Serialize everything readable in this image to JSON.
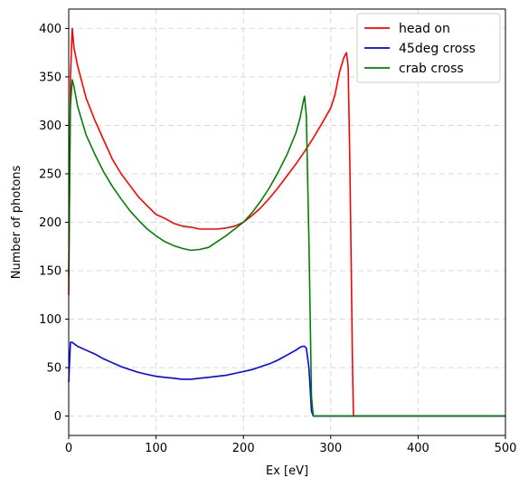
{
  "chart_data": {
    "type": "line",
    "title": "",
    "xlabel": "Ex [eV]",
    "ylabel": "Number of photons",
    "xlim": [
      0,
      500
    ],
    "ylim": [
      -20,
      420
    ],
    "xticks": [
      0,
      100,
      200,
      300,
      400,
      500
    ],
    "yticks": [
      0,
      50,
      100,
      150,
      200,
      250,
      300,
      350,
      400
    ],
    "grid": true,
    "legend_position": "top-right",
    "series": [
      {
        "name": "head on",
        "color": "#ff0000",
        "x": [
          0,
          2,
          4,
          6,
          10,
          15,
          20,
          30,
          40,
          50,
          60,
          70,
          80,
          90,
          100,
          110,
          120,
          130,
          140,
          150,
          160,
          170,
          180,
          190,
          200,
          210,
          220,
          230,
          240,
          250,
          260,
          270,
          280,
          290,
          300,
          305,
          310,
          315,
          318,
          320,
          322,
          325,
          326,
          330,
          400,
          500
        ],
        "y": [
          125,
          350,
          400,
          380,
          362,
          345,
          328,
          305,
          285,
          265,
          250,
          238,
          226,
          217,
          208,
          204,
          199,
          196,
          195,
          193,
          193,
          193,
          194,
          196,
          200,
          207,
          215,
          225,
          236,
          248,
          260,
          273,
          287,
          302,
          318,
          332,
          355,
          370,
          375,
          360,
          250,
          50,
          0,
          0,
          0,
          0
        ]
      },
      {
        "name": "45deg cross",
        "color": "#0000ff",
        "x": [
          0,
          2,
          4,
          10,
          20,
          30,
          40,
          50,
          60,
          70,
          80,
          90,
          100,
          110,
          120,
          130,
          140,
          150,
          160,
          170,
          180,
          190,
          200,
          210,
          220,
          230,
          240,
          250,
          260,
          265,
          268,
          270,
          272,
          275,
          278,
          280,
          290,
          400,
          500
        ],
        "y": [
          35,
          76,
          76,
          72,
          68,
          64,
          59,
          55,
          51,
          48,
          45,
          43,
          41,
          40,
          39,
          38,
          38,
          39,
          40,
          41,
          42,
          44,
          46,
          48,
          51,
          54,
          58,
          63,
          68,
          71,
          72,
          72,
          70,
          50,
          5,
          0,
          0,
          0,
          0
        ]
      },
      {
        "name": "crab cross",
        "color": "#008000",
        "x": [
          0,
          2,
          4,
          6,
          10,
          15,
          20,
          30,
          40,
          50,
          60,
          70,
          80,
          90,
          100,
          110,
          120,
          130,
          140,
          150,
          160,
          170,
          180,
          190,
          200,
          210,
          220,
          230,
          240,
          250,
          260,
          265,
          268,
          270,
          272,
          275,
          278,
          280,
          290,
          400,
          500
        ],
        "y": [
          145,
          320,
          347,
          340,
          320,
          305,
          290,
          270,
          252,
          237,
          224,
          212,
          202,
          193,
          186,
          180,
          176,
          173,
          171,
          172,
          174,
          180,
          186,
          193,
          200,
          210,
          222,
          236,
          252,
          270,
          292,
          308,
          322,
          330,
          310,
          180,
          20,
          0,
          0,
          0,
          0
        ]
      }
    ]
  }
}
